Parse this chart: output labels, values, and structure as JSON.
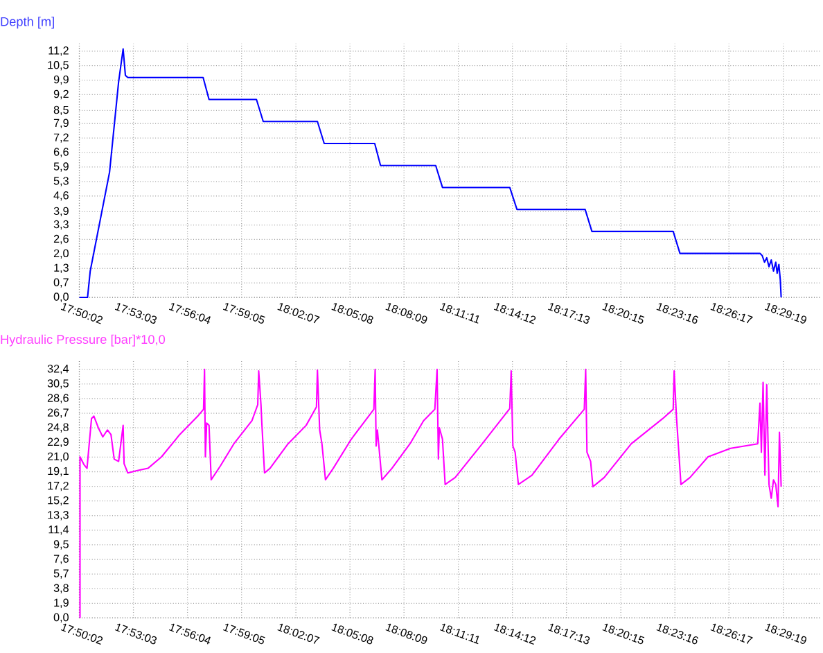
{
  "chart_data": [
    {
      "type": "line",
      "ylabel": "Depth [m]",
      "x": [
        17.8339,
        17.8415,
        17.844,
        17.862,
        17.8704,
        17.8746,
        17.8767,
        17.8789,
        17.949,
        17.9545,
        17.9986,
        18.0049,
        18.0553,
        18.0616,
        18.1086,
        18.114,
        18.1653,
        18.1716,
        18.2342,
        18.2409,
        18.3043,
        18.3106,
        18.3862,
        18.3925,
        18.4669,
        18.469,
        18.4711,
        18.4732,
        18.4753,
        18.4774,
        18.4795,
        18.4816,
        18.4829,
        18.4845,
        18.4858,
        18.4866
      ],
      "series": [
        {
          "color": "#0000ff",
          "values": [
            0,
            0,
            1.2,
            5.7,
            9.8,
            11.3,
            10.1,
            10.0,
            10.0,
            9.0,
            9.0,
            8.0,
            8.0,
            7.0,
            7.0,
            6.0,
            6.0,
            5.0,
            5.0,
            4.0,
            4.0,
            3.0,
            3.0,
            2.0,
            2.0,
            1.9,
            1.6,
            1.8,
            1.4,
            1.7,
            1.2,
            1.6,
            1.1,
            1.5,
            0.8,
            0
          ]
        }
      ],
      "xlim": [
        17.8338,
        18.523
      ],
      "ylim": [
        0,
        11.55
      ],
      "xticks": [
        {
          "value": 17.833889,
          "label": "17:50:02"
        },
        {
          "value": 17.884167,
          "label": "17:53:03"
        },
        {
          "value": 17.934444,
          "label": "17:56:04"
        },
        {
          "value": 17.984722,
          "label": "17:59:05"
        },
        {
          "value": 18.035278,
          "label": "18:02:07"
        },
        {
          "value": 18.085556,
          "label": "18:05:08"
        },
        {
          "value": 18.135833,
          "label": "18:08:09"
        },
        {
          "value": 18.186389,
          "label": "18:11:11"
        },
        {
          "value": 18.236667,
          "label": "18:14:12"
        },
        {
          "value": 18.286944,
          "label": "18:17:13"
        },
        {
          "value": 18.3375,
          "label": "18:20:15"
        },
        {
          "value": 18.387778,
          "label": "18:23:16"
        },
        {
          "value": 18.438056,
          "label": "18:26:17"
        },
        {
          "value": 18.488611,
          "label": "18:29:19"
        }
      ],
      "yticks": [
        {
          "value": 0,
          "label": "0,0"
        },
        {
          "value": 0.6588,
          "label": "0,7"
        },
        {
          "value": 1.3176,
          "label": "1,3"
        },
        {
          "value": 1.9765,
          "label": "2,0"
        },
        {
          "value": 2.6353,
          "label": "2,6"
        },
        {
          "value": 3.2941,
          "label": "3,3"
        },
        {
          "value": 3.9,
          "label": "3,9"
        },
        {
          "value": 4.6118,
          "label": "4,6"
        },
        {
          "value": 5.2706,
          "label": "5,3"
        },
        {
          "value": 5.9294,
          "label": "5,9"
        },
        {
          "value": 6.5882,
          "label": "6,6"
        },
        {
          "value": 7.2471,
          "label": "7,2"
        },
        {
          "value": 7.9059,
          "label": "7,9"
        },
        {
          "value": 8.5,
          "label": "8,5"
        },
        {
          "value": 9.2235,
          "label": "9,2"
        },
        {
          "value": 9.8824,
          "label": "9,9"
        },
        {
          "value": 10.5412,
          "label": "10,5"
        },
        {
          "value": 11.2,
          "label": "11,2"
        }
      ],
      "grid": true
    },
    {
      "type": "line",
      "ylabel": "Hydraulic  Pressure  [bar]*10,0",
      "x": [
        17.8345,
        17.8345,
        17.8381,
        17.841,
        17.8452,
        17.8474,
        17.8515,
        17.8557,
        17.86,
        17.8633,
        17.8663,
        17.8704,
        17.8746,
        17.8755,
        17.8789,
        17.8872,
        17.8977,
        17.9103,
        17.9272,
        17.944,
        17.9494,
        17.9503,
        17.9511,
        17.9523,
        17.9545,
        17.9565,
        17.965,
        17.9776,
        17.9944,
        17.9998,
        18.0007,
        18.0028,
        18.0036,
        18.0061,
        18.0112,
        18.028,
        18.0448,
        18.0544,
        18.0553,
        18.0574,
        18.0595,
        18.0628,
        18.07,
        18.0868,
        18.1078,
        18.109,
        18.1099,
        18.1111,
        18.1153,
        18.1246,
        18.1414,
        18.154,
        18.1645,
        18.1666,
        18.1678,
        18.1687,
        18.1716,
        18.1741,
        18.1834,
        18.2086,
        18.2342,
        18.2355,
        18.2371,
        18.2392,
        18.2422,
        18.2548,
        18.28,
        18.3035,
        18.3048,
        18.306,
        18.3094,
        18.3115,
        18.322,
        18.3472,
        18.3766,
        18.3862,
        18.3871,
        18.3892,
        18.3934,
        18.4018,
        18.4186,
        18.4396,
        18.4648,
        18.4669,
        18.4682,
        18.4698,
        18.4715,
        18.4732,
        18.4753,
        18.4774,
        18.4795,
        18.4816,
        18.4837,
        18.485,
        18.4866
      ],
      "series": [
        {
          "color": "#ff00ff",
          "values": [
            0,
            21.0,
            20.0,
            19.5,
            26.0,
            26.3,
            24.8,
            23.6,
            24.5,
            23.9,
            20.7,
            20.4,
            25.1,
            20.1,
            18.9,
            19.2,
            19.5,
            21.0,
            23.9,
            26.3,
            27.2,
            32.4,
            21.0,
            25.4,
            25.1,
            18.0,
            19.8,
            22.7,
            25.7,
            27.8,
            32.2,
            27.8,
            25.4,
            18.9,
            19.5,
            22.7,
            25.1,
            27.5,
            32.3,
            24.5,
            22.7,
            18.0,
            19.5,
            23.3,
            27.2,
            32.4,
            22.4,
            24.5,
            18.0,
            19.5,
            22.7,
            25.7,
            27.2,
            32.4,
            20.7,
            24.8,
            23.3,
            17.4,
            18.3,
            22.7,
            27.3,
            32.2,
            22.4,
            21.6,
            17.4,
            18.6,
            23.3,
            27.2,
            32.4,
            21.6,
            20.4,
            17.1,
            18.3,
            22.7,
            26.0,
            27.2,
            32.2,
            26.3,
            17.4,
            18.3,
            21.0,
            22.1,
            22.7,
            28.0,
            21.6,
            30.7,
            18.6,
            30.4,
            17.4,
            15.6,
            18.0,
            17.4,
            14.5,
            24.2,
            17.1
          ]
        }
      ],
      "xlim": [
        17.8338,
        18.523
      ],
      "ylim": [
        0,
        33.46
      ],
      "xticks": [
        {
          "value": 17.833889,
          "label": "17:50:02"
        },
        {
          "value": 17.884167,
          "label": "17:53:03"
        },
        {
          "value": 17.934444,
          "label": "17:56:04"
        },
        {
          "value": 17.984722,
          "label": "17:59:05"
        },
        {
          "value": 18.035278,
          "label": "18:02:07"
        },
        {
          "value": 18.085556,
          "label": "18:05:08"
        },
        {
          "value": 18.135833,
          "label": "18:08:09"
        },
        {
          "value": 18.186389,
          "label": "18:11:11"
        },
        {
          "value": 18.236667,
          "label": "18:14:12"
        },
        {
          "value": 18.286944,
          "label": "18:17:13"
        },
        {
          "value": 18.3375,
          "label": "18:20:15"
        },
        {
          "value": 18.387778,
          "label": "18:23:16"
        },
        {
          "value": 18.438056,
          "label": "18:26:17"
        },
        {
          "value": 18.488611,
          "label": "18:29:19"
        }
      ],
      "yticks": [
        {
          "value": 0,
          "label": "0,0"
        },
        {
          "value": 1.9059,
          "label": "1,9"
        },
        {
          "value": 3.8118,
          "label": "3,8"
        },
        {
          "value": 5.7176,
          "label": "5,7"
        },
        {
          "value": 7.6235,
          "label": "7,6"
        },
        {
          "value": 9.5294,
          "label": "9,5"
        },
        {
          "value": 11.4353,
          "label": "11,4"
        },
        {
          "value": 13.3412,
          "label": "13,3"
        },
        {
          "value": 15.2471,
          "label": "15,2"
        },
        {
          "value": 17.1529,
          "label": "17,2"
        },
        {
          "value": 19.0588,
          "label": "19,1"
        },
        {
          "value": 20.9647,
          "label": "21,0"
        },
        {
          "value": 22.8706,
          "label": "22,9"
        },
        {
          "value": 24.7765,
          "label": "24,8"
        },
        {
          "value": 26.6824,
          "label": "26,7"
        },
        {
          "value": 28.5882,
          "label": "28,6"
        },
        {
          "value": 30.4941,
          "label": "30,5"
        },
        {
          "value": 32.4,
          "label": "32,4"
        }
      ],
      "grid": true
    }
  ]
}
